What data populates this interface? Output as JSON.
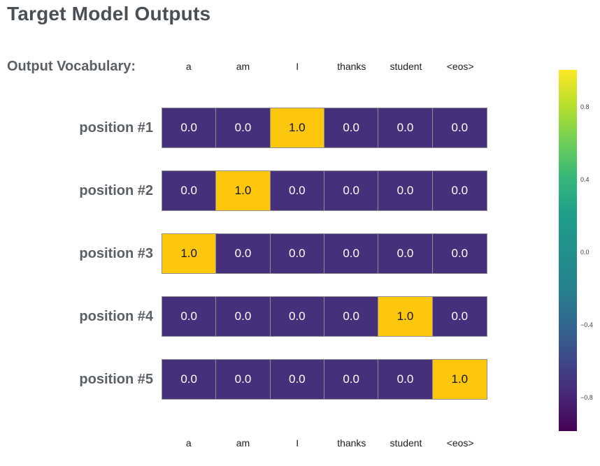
{
  "page": {
    "title": "Target Model Outputs"
  },
  "vocab": {
    "label": "Output Vocabulary:",
    "tokens": [
      "a",
      "am",
      "I",
      "thanks",
      "student",
      "<eos>"
    ]
  },
  "matrix": {
    "rows": [
      {
        "label": "position #1",
        "cells": [
          "0.0",
          "0.0",
          "1.0",
          "0.0",
          "0.0",
          "0.0"
        ]
      },
      {
        "label": "position #2",
        "cells": [
          "0.0",
          "1.0",
          "0.0",
          "0.0",
          "0.0",
          "0.0"
        ]
      },
      {
        "label": "position #3",
        "cells": [
          "1.0",
          "0.0",
          "0.0",
          "0.0",
          "0.0",
          "0.0"
        ]
      },
      {
        "label": "position #4",
        "cells": [
          "0.0",
          "0.0",
          "0.0",
          "0.0",
          "1.0",
          "0.0"
        ]
      },
      {
        "label": "position #5",
        "cells": [
          "0.0",
          "0.0",
          "0.0",
          "0.0",
          "0.0",
          "1.0"
        ]
      }
    ]
  },
  "colorbar": {
    "tick_labels": [
      "0.8",
      "0.4",
      "0.0",
      "−0.4",
      "−0.8"
    ]
  },
  "colors": {
    "cell_low": "#46307c",
    "cell_high": "#fcc70d",
    "cell_text_low": "#ffffff",
    "cell_text_high": "#111111",
    "grid_border": "#8f8f8f",
    "heading": "#4a4f55",
    "label": "#5b6066",
    "viridis_stops": [
      "#fde725",
      "#b5de2b",
      "#6ece58",
      "#35b779",
      "#1f9e89",
      "#21918c",
      "#26828e",
      "#31688e",
      "#3e4989",
      "#482878",
      "#440154"
    ]
  },
  "chart_data": {
    "type": "heatmap",
    "title": "Target Model Outputs",
    "x_categories": [
      "a",
      "am",
      "I",
      "thanks",
      "student",
      "<eos>"
    ],
    "y_categories": [
      "position #1",
      "position #2",
      "position #3",
      "position #4",
      "position #5"
    ],
    "values": [
      [
        0.0,
        0.0,
        1.0,
        0.0,
        0.0,
        0.0
      ],
      [
        0.0,
        1.0,
        0.0,
        0.0,
        0.0,
        0.0
      ],
      [
        1.0,
        0.0,
        0.0,
        0.0,
        0.0,
        0.0
      ],
      [
        0.0,
        0.0,
        0.0,
        0.0,
        1.0,
        0.0
      ],
      [
        0.0,
        0.0,
        0.0,
        0.0,
        0.0,
        1.0
      ]
    ],
    "cell_labels_shown": true,
    "colormap": "viridis",
    "colorbar_ticks": [
      0.8,
      0.4,
      0.0,
      -0.4,
      -0.8
    ],
    "colorbar_range": [
      -1.0,
      1.0
    ],
    "legend_position": "right",
    "grid": false
  }
}
